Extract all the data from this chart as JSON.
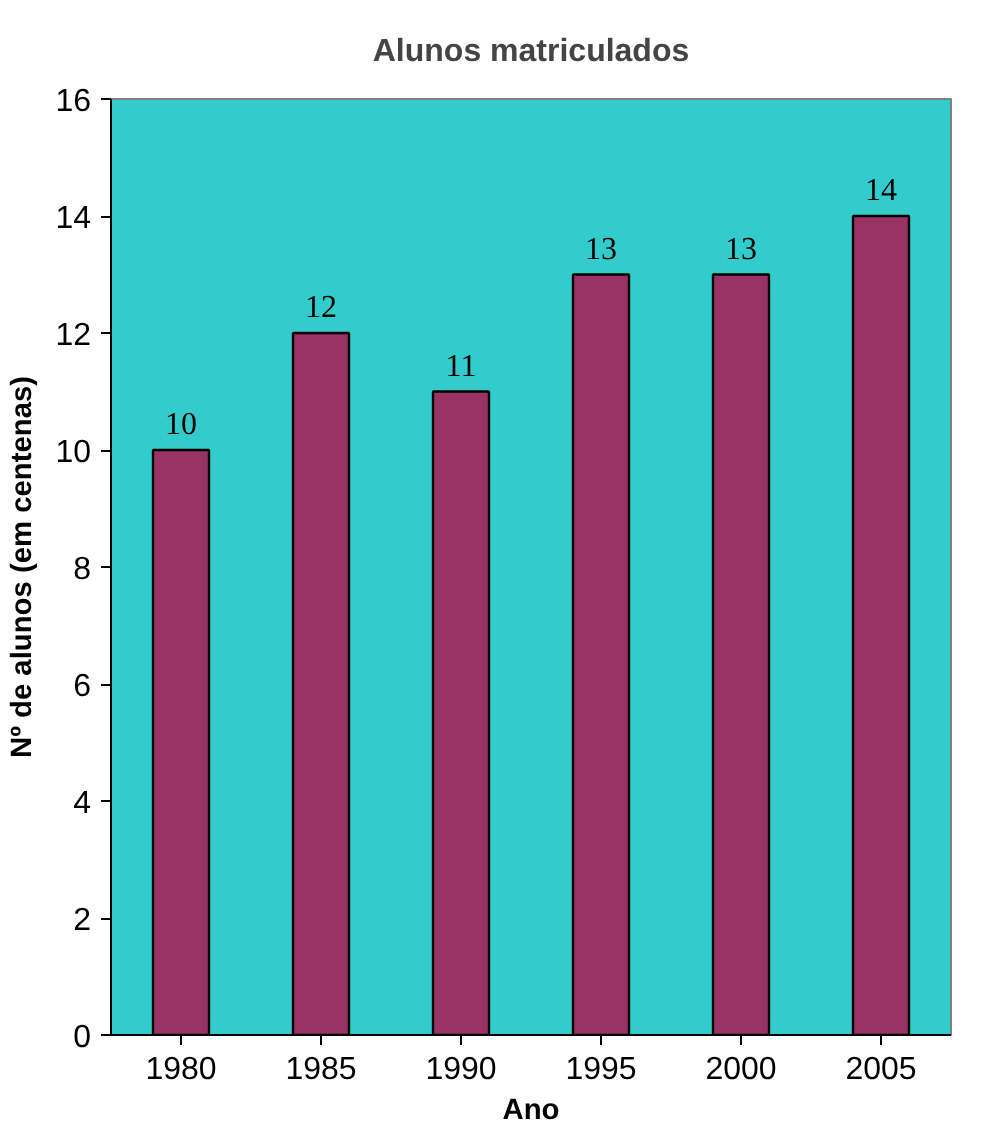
{
  "chart_data": {
    "type": "bar",
    "title": "Alunos matriculados",
    "xlabel": "Ano",
    "ylabel": "Nº de alunos (em centenas)",
    "categories": [
      "1980",
      "1985",
      "1990",
      "1995",
      "2000",
      "2005"
    ],
    "values": [
      10,
      12,
      11,
      13,
      13,
      14
    ],
    "color": "#993366",
    "ylim": [
      0,
      16
    ],
    "yticks": [
      0,
      2,
      4,
      6,
      8,
      10,
      12,
      14,
      16
    ],
    "grid": false,
    "data_labels": true
  }
}
